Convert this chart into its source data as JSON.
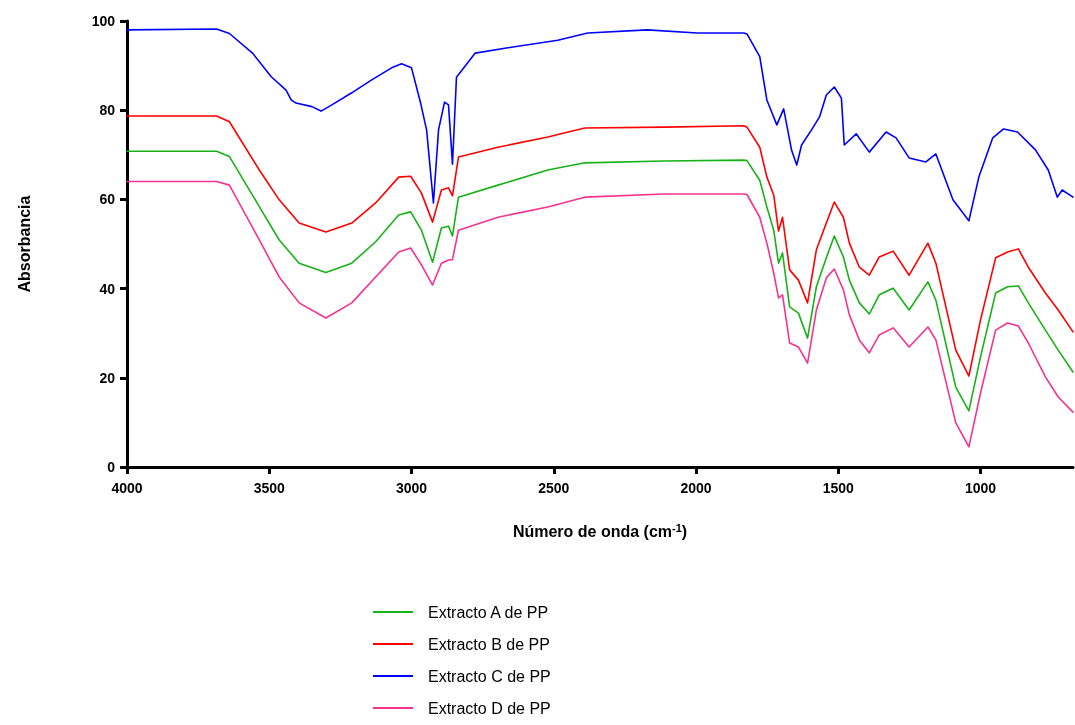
{
  "chart_data": {
    "type": "line",
    "xlabel": "Número de onda (cm$^{-1}$)",
    "ylabel": "Absorbancia",
    "xlim": [
      4000,
      675
    ],
    "xticks": [
      4000,
      3500,
      3000,
      2500,
      2000,
      1500,
      1000
    ],
    "ylim": [
      0,
      100
    ],
    "yticks": [
      0,
      20,
      40,
      60,
      80,
      100
    ],
    "grid": false,
    "legend": "bottom",
    "marker": "none",
    "line_style": "solid",
    "x": [
      4000,
      3685,
      3640,
      3535,
      3465,
      3395,
      3301,
      3210,
      3126,
      3045,
      3003,
      2965,
      2926,
      2895,
      2870,
      2856,
      2835,
      2696,
      2521,
      2391,
      2112,
      1832,
      1821,
      1776,
      1751,
      1727,
      1710,
      1696,
      1671,
      1640,
      1608,
      1577,
      1542,
      1514,
      1482,
      1461,
      1426,
      1391,
      1356,
      1307,
      1251,
      1185,
      1157,
      1087,
      1041,
      1000,
      947,
      905,
      867,
      832,
      772,
      727,
      675
    ],
    "series": [
      {
        "name": "Extracto A de PP",
        "color": "#17b217",
        "values": [
          70.8,
          70.8,
          69.6,
          58.4,
          50.9,
          45.7,
          43.6,
          45.7,
          50.5,
          56.5,
          57.2,
          53.1,
          45.9,
          53.6,
          54,
          51.8,
          60.5,
          63.2,
          66.6,
          68.2,
          68.6,
          68.8,
          68.7,
          64.3,
          58.3,
          53.1,
          45.7,
          48,
          35.9,
          34.5,
          28.9,
          40.4,
          46.9,
          51.8,
          47.1,
          41.9,
          36.8,
          34.3,
          38.6,
          40.1,
          35.2,
          41.5,
          37.4,
          17.9,
          12.6,
          24.7,
          39,
          40.4,
          40.6,
          36.8,
          30.7,
          26.2,
          21.3
        ]
      },
      {
        "name": "Extracto B de PP",
        "color": "#ff0000",
        "values": [
          78.7,
          78.7,
          77.4,
          66.6,
          59.9,
          54.7,
          52.7,
          54.7,
          59.2,
          65,
          65.2,
          61.4,
          54.9,
          62.1,
          62.6,
          60.8,
          69.5,
          71.7,
          74,
          76,
          76.2,
          76.5,
          76.2,
          71.7,
          65,
          61,
          52.9,
          56,
          44.2,
          41.9,
          36.8,
          48.7,
          54.7,
          59.4,
          56,
          50.2,
          44.8,
          43,
          47.1,
          48.4,
          43,
          50.2,
          45.7,
          26.2,
          20.4,
          33,
          46.9,
          48.2,
          48.9,
          44.8,
          39,
          35.2,
          30.3
        ]
      },
      {
        "name": "Extracto C de PP",
        "color": "#0000ff",
        "x": [
          4000,
          3685,
          3640,
          3559,
          3493,
          3441,
          3423,
          3406,
          3350,
          3318,
          3280,
          3210,
          3140,
          3070,
          3035,
          3000,
          2968,
          2947,
          2923,
          2905,
          2884,
          2870,
          2856,
          2842,
          2776,
          2661,
          2486,
          2381,
          2171,
          1996,
          1832,
          1821,
          1776,
          1751,
          1716,
          1692,
          1664,
          1646,
          1629,
          1594,
          1566,
          1542,
          1514,
          1489,
          1479,
          1437,
          1391,
          1332,
          1297,
          1251,
          1192,
          1157,
          1097,
          1041,
          1006,
          957,
          919,
          870,
          807,
          762,
          730,
          713,
          675
        ],
        "values": [
          98,
          98.2,
          97.2,
          92.8,
          87.5,
          84.5,
          82.3,
          81.6,
          80.8,
          79.8,
          81.2,
          83.9,
          86.8,
          89.5,
          90.4,
          89.5,
          81.6,
          75.6,
          59.2,
          75.6,
          81.8,
          81.2,
          67.9,
          87.4,
          92.8,
          94,
          95.7,
          97.3,
          98,
          97.3,
          97.3,
          97.1,
          92,
          82.3,
          76.7,
          80.3,
          71,
          67.7,
          72.2,
          75.6,
          78.5,
          83.4,
          85.2,
          82.7,
          72.2,
          74.7,
          70.6,
          75.1,
          73.8,
          69.3,
          68.4,
          70.2,
          59.9,
          55.2,
          65,
          73.8,
          75.8,
          75.1,
          71.1,
          66.6,
          60.5,
          62.1,
          60.5
        ]
      },
      {
        "name": "Extracto D de PP",
        "color": "#f5338f",
        "values": [
          64,
          64,
          63.2,
          50.9,
          42.6,
          36.8,
          33.4,
          36.8,
          42.6,
          48.2,
          49.1,
          45.3,
          40.8,
          45.7,
          46.4,
          46.5,
          53.1,
          56,
          58.3,
          60.5,
          61.2,
          61.2,
          61.1,
          56,
          50.2,
          43.5,
          37.9,
          38.6,
          27.8,
          26.9,
          23.3,
          35.2,
          42.4,
          44.4,
          39.7,
          34.1,
          28.5,
          25.6,
          29.6,
          31.2,
          26.9,
          31.4,
          28.5,
          9.9,
          4.5,
          16.6,
          30.7,
          32.3,
          31.6,
          27.8,
          20.2,
          15.7,
          12.3
        ]
      }
    ]
  }
}
